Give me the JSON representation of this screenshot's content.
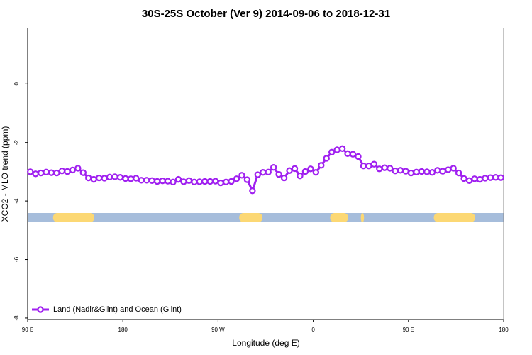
{
  "chart_data": {
    "type": "line",
    "title": "30S-25S October (Ver 9)   2014-09-06 to 2018-12-31",
    "xlabel": "Longitude (deg E)",
    "ylabel": "XCO2 - MLO trend (ppm)",
    "xlim": [
      90,
      540
    ],
    "ylim": [
      -8.05,
      1.9
    ],
    "xticks": [
      {
        "value": 90,
        "label": "90 E"
      },
      {
        "value": 180,
        "label": "180"
      },
      {
        "value": 270,
        "label": "90 W"
      },
      {
        "value": 360,
        "label": "0"
      },
      {
        "value": 450,
        "label": "90 E"
      },
      {
        "value": 540,
        "label": "180"
      }
    ],
    "yticks": [
      0,
      -2,
      -4,
      -6,
      -8
    ],
    "legend": "bottom-left",
    "ocean_color": "#a6bddb",
    "land_color": "#fcd874",
    "land_ranges": [
      [
        114,
        153
      ],
      [
        290,
        312
      ],
      [
        376,
        393
      ],
      [
        405,
        408
      ],
      [
        474,
        513
      ]
    ],
    "x": [
      92.5,
      97.5,
      102.5,
      107.5,
      112.5,
      117.5,
      122.5,
      127.5,
      132.5,
      137.5,
      142.5,
      147.5,
      152.5,
      157.5,
      162.5,
      167.5,
      172.5,
      177.5,
      182.5,
      187.5,
      192.5,
      197.5,
      202.5,
      207.5,
      212.5,
      217.5,
      222.5,
      227.5,
      232.5,
      237.5,
      242.5,
      247.5,
      252.5,
      257.5,
      262.5,
      267.5,
      272.5,
      277.5,
      282.5,
      287.5,
      292.5,
      297.5,
      302.5,
      307.5,
      312.5,
      317.5,
      322.5,
      327.5,
      332.5,
      337.5,
      342.5,
      347.5,
      352.5,
      357.5,
      362.5,
      367.5,
      372.5,
      377.5,
      382.5,
      387.5,
      392.5,
      397.5,
      402.5,
      407.5,
      412.5,
      417.5,
      422.5,
      427.5,
      432.5,
      437.5,
      442.5,
      447.5,
      452.5,
      457.5,
      462.5,
      467.5,
      472.5,
      477.5,
      482.5,
      487.5,
      492.5,
      497.5,
      502.5,
      507.5,
      512.5,
      517.5,
      522.5,
      527.5,
      532.5,
      537.5
    ],
    "series": [
      {
        "name": "Land (Nadir&Glint) and Ocean (Glint)",
        "color": "#a020f0",
        "values": [
          -3.0,
          -3.07,
          -3.04,
          -3.01,
          -3.03,
          -3.04,
          -2.97,
          -2.99,
          -2.94,
          -2.88,
          -3.03,
          -3.21,
          -3.26,
          -3.21,
          -3.22,
          -3.18,
          -3.17,
          -3.19,
          -3.23,
          -3.24,
          -3.22,
          -3.29,
          -3.29,
          -3.3,
          -3.33,
          -3.31,
          -3.32,
          -3.35,
          -3.26,
          -3.34,
          -3.3,
          -3.35,
          -3.34,
          -3.33,
          -3.33,
          -3.32,
          -3.38,
          -3.35,
          -3.33,
          -3.24,
          -3.12,
          -3.27,
          -3.65,
          -3.1,
          -3.02,
          -3.01,
          -2.85,
          -3.09,
          -3.21,
          -2.96,
          -2.89,
          -3.14,
          -2.99,
          -2.9,
          -3.02,
          -2.78,
          -2.54,
          -2.33,
          -2.25,
          -2.21,
          -2.38,
          -2.4,
          -2.48,
          -2.8,
          -2.8,
          -2.74,
          -2.9,
          -2.86,
          -2.88,
          -2.97,
          -2.95,
          -2.98,
          -3.04,
          -3.01,
          -2.99,
          -3.0,
          -3.02,
          -2.95,
          -2.98,
          -2.93,
          -2.88,
          -3.04,
          -3.23,
          -3.3,
          -3.24,
          -3.26,
          -3.22,
          -3.2,
          -3.19,
          -3.2
        ]
      }
    ]
  }
}
